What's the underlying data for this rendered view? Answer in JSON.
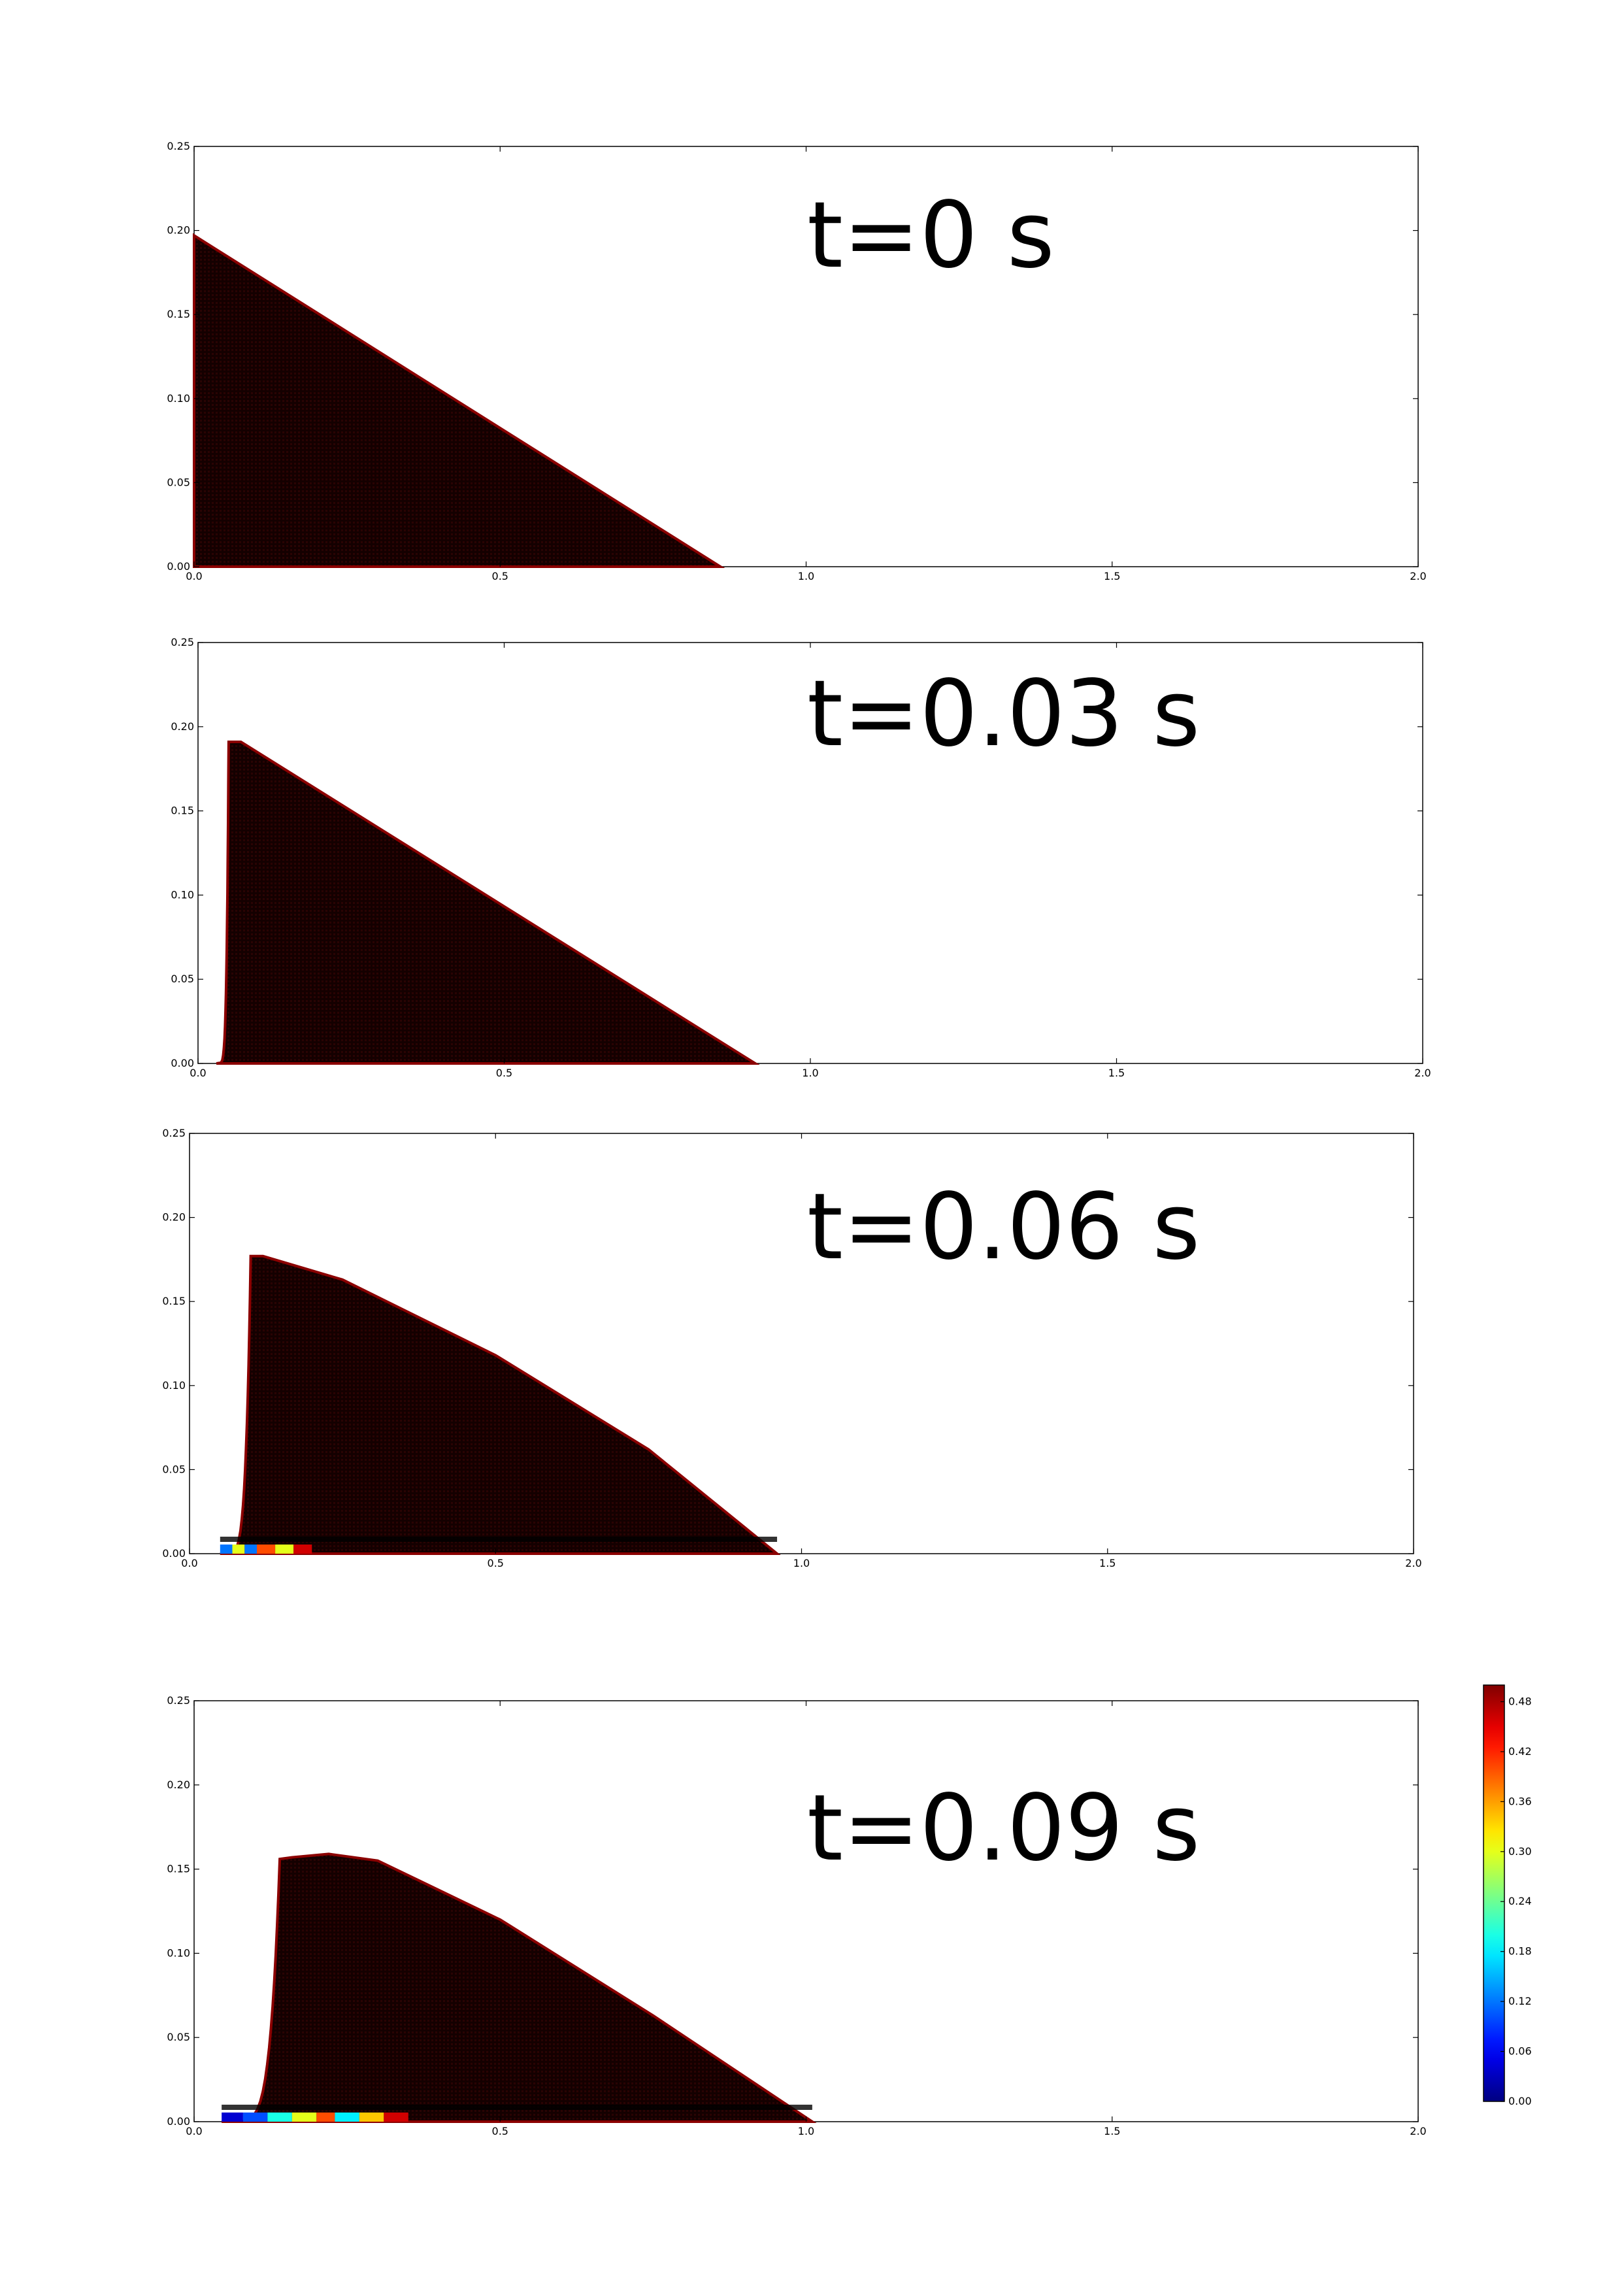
{
  "chart_data": [
    {
      "type": "heatmap",
      "panel": 1,
      "annotation": "t=0 s",
      "title": "",
      "xlabel": "",
      "ylabel": "",
      "xlim": [
        0.0,
        2.0
      ],
      "ylim": [
        0.0,
        0.25
      ],
      "xticks": [
        "0.0",
        "0.5",
        "1.0",
        "1.5",
        "2.0"
      ],
      "yticks": [
        "0.00",
        "0.05",
        "0.10",
        "0.15",
        "0.20",
        "0.25"
      ],
      "grid": false,
      "upper_profile": {
        "x": [
          0.0,
          0.86
        ],
        "y": [
          0.197,
          0.0
        ]
      },
      "base": {
        "x_start": 0.0,
        "x_end": 0.86
      },
      "bottom_layer": []
    },
    {
      "type": "heatmap",
      "panel": 2,
      "annotation": "t=0.03 s",
      "title": "",
      "xlabel": "",
      "ylabel": "",
      "xlim": [
        0.0,
        2.0
      ],
      "ylim": [
        0.0,
        0.25
      ],
      "xticks": [
        "0.0",
        "0.5",
        "1.0",
        "1.5",
        "2.0"
      ],
      "yticks": [
        "0.00",
        "0.05",
        "0.10",
        "0.15",
        "0.20",
        "0.25"
      ],
      "grid": false,
      "upper_profile": {
        "x": [
          0.05,
          0.07,
          0.91
        ],
        "y": [
          0.191,
          0.191,
          0.0
        ]
      },
      "base": {
        "x_start": 0.03,
        "x_end": 0.91
      },
      "bottom_layer": []
    },
    {
      "type": "heatmap",
      "panel": 3,
      "annotation": "t=0.06 s",
      "title": "",
      "xlabel": "",
      "ylabel": "",
      "xlim": [
        0.0,
        2.0
      ],
      "ylim": [
        0.0,
        0.25
      ],
      "xticks": [
        "0.0",
        "0.5",
        "1.0",
        "1.5",
        "2.0"
      ],
      "yticks": [
        "0.00",
        "0.05",
        "0.10",
        "0.15",
        "0.20",
        "0.25"
      ],
      "grid": false,
      "upper_profile": {
        "x": [
          0.1,
          0.12,
          0.25,
          0.5,
          0.75,
          0.96
        ],
        "y": [
          0.177,
          0.177,
          0.163,
          0.118,
          0.062,
          0.0
        ]
      },
      "base": {
        "x_start": 0.05,
        "x_end": 0.96
      },
      "bottom_layer": [
        {
          "x": [
            0.05,
            0.07
          ],
          "value": 0.12
        },
        {
          "x": [
            0.07,
            0.09
          ],
          "value": 0.3
        },
        {
          "x": [
            0.09,
            0.11
          ],
          "value": 0.12
        },
        {
          "x": [
            0.11,
            0.14
          ],
          "value": 0.4
        },
        {
          "x": [
            0.14,
            0.17
          ],
          "value": 0.3
        },
        {
          "x": [
            0.17,
            0.2
          ],
          "value": 0.46
        }
      ]
    },
    {
      "type": "heatmap",
      "panel": 4,
      "annotation": "t=0.09 s",
      "title": "",
      "xlabel": "",
      "ylabel": "",
      "xlim": [
        0.0,
        2.0
      ],
      "ylim": [
        0.0,
        0.25
      ],
      "xticks": [
        "0.0",
        "0.5",
        "1.0",
        "1.5",
        "2.0"
      ],
      "yticks": [
        "0.00",
        "0.05",
        "0.10",
        "0.15",
        "0.20",
        "0.25"
      ],
      "grid": false,
      "upper_profile": {
        "x": [
          0.14,
          0.16,
          0.22,
          0.3,
          0.5,
          0.75,
          1.01
        ],
        "y": [
          0.156,
          0.157,
          0.159,
          0.155,
          0.12,
          0.063,
          0.0
        ]
      },
      "base": {
        "x_start": 0.045,
        "x_end": 1.01
      },
      "bottom_layer": [
        {
          "x": [
            0.045,
            0.08
          ],
          "value": 0.04
        },
        {
          "x": [
            0.08,
            0.12
          ],
          "value": 0.1
        },
        {
          "x": [
            0.12,
            0.16
          ],
          "value": 0.2
        },
        {
          "x": [
            0.16,
            0.2
          ],
          "value": 0.3
        },
        {
          "x": [
            0.2,
            0.23
          ],
          "value": 0.4
        },
        {
          "x": [
            0.23,
            0.27
          ],
          "value": 0.18
        },
        {
          "x": [
            0.27,
            0.31
          ],
          "value": 0.34
        },
        {
          "x": [
            0.31,
            0.35
          ],
          "value": 0.46
        }
      ]
    }
  ],
  "colorbar": {
    "ticks": [
      "0.00",
      "0.06",
      "0.12",
      "0.18",
      "0.24",
      "0.30",
      "0.36",
      "0.42",
      "0.48"
    ],
    "tick_values": [
      0.0,
      0.06,
      0.12,
      0.18,
      0.24,
      0.3,
      0.36,
      0.42,
      0.48
    ],
    "range": [
      0.0,
      0.5
    ],
    "colormap": "jet"
  },
  "colors": {
    "fill_dark": "#140000",
    "edge_red": "#8b0000",
    "axis": "#000000"
  }
}
